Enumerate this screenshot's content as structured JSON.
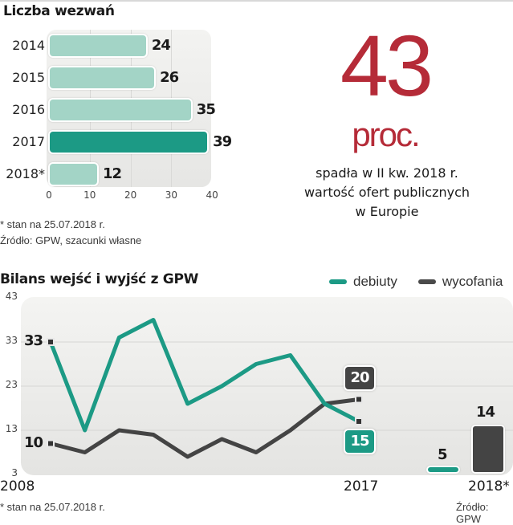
{
  "colors": {
    "teal": "#1c9a85",
    "teal_light": "#a3d4c6",
    "dark": "#444444",
    "accent_red": "#b52b38",
    "grid": "#d6d6d4"
  },
  "chart_data": [
    {
      "type": "bar",
      "orientation": "horizontal",
      "title": "Liczba wezwań",
      "categories": [
        "2014",
        "2015",
        "2016",
        "2017",
        "2018*"
      ],
      "values": [
        24,
        26,
        35,
        39,
        12
      ],
      "value_labels": [
        "24",
        "26",
        "35",
        "39",
        "12"
      ],
      "highlight": "2017",
      "xlim": [
        0,
        40
      ],
      "xticks": [
        "0",
        "10",
        "20",
        "30",
        "40"
      ],
      "grid": true,
      "notes": [
        "* stan na 25.07.2018 r.",
        "Źródło: GPW, szacunki własne"
      ]
    },
    {
      "type": "line",
      "title": "Bilans wejść i wyjść z GPW",
      "x": [
        2008,
        2009,
        2010,
        2011,
        2012,
        2013,
        2014,
        2015,
        2016,
        2017
      ],
      "series": [
        {
          "name": "debiuty",
          "values": [
            33,
            13,
            34,
            38,
            19,
            23,
            28,
            30,
            19,
            15
          ]
        },
        {
          "name": "wycofania",
          "values": [
            10,
            8,
            13,
            12,
            7,
            11,
            8,
            13,
            19,
            20
          ]
        }
      ],
      "extra_period": {
        "label": "2018*",
        "type": "bar",
        "values": {
          "debiuty": 5,
          "wycofania": 14
        }
      },
      "ylim": [
        3,
        43
      ],
      "yticks": [
        "43",
        "33",
        "23",
        "13",
        "3"
      ],
      "xtick_labels": [
        "2008",
        "2017",
        "2018*"
      ],
      "start_labels": {
        "debiuty": "33",
        "wycofania": "10"
      },
      "end_labels": {
        "debiuty": "15",
        "wycofania": "20"
      },
      "extra_labels": {
        "debiuty": "5",
        "wycofania": "14"
      },
      "legend": [
        {
          "name": "debiuty"
        },
        {
          "name": "wycofania"
        }
      ],
      "legend_position": "top-right",
      "grid": true,
      "notes": [
        "* stan na 25.07.2018 r.",
        "Źródło: GPW"
      ]
    }
  ],
  "stat": {
    "number": "43",
    "unit": "proc.",
    "description_lines": [
      "spadła w II kw. 2018 r.",
      "wartość ofert publicznych",
      "w Europie"
    ]
  }
}
